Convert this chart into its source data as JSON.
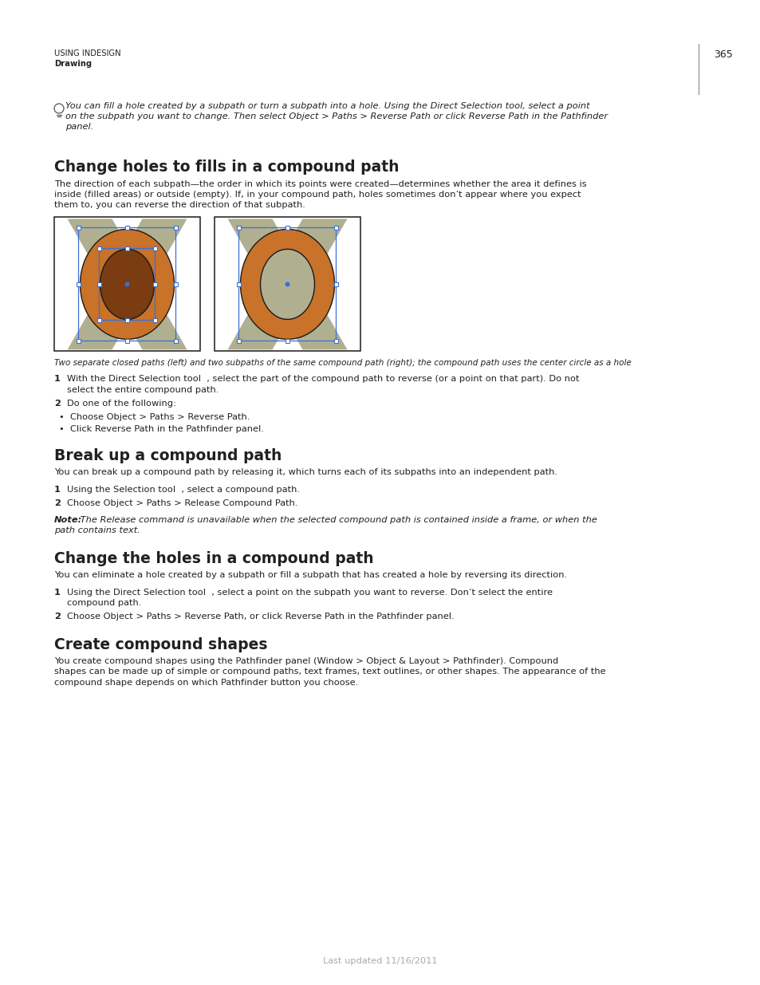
{
  "page_number": "365",
  "header_left_line1": "USING INDESIGN",
  "header_left_line2": "Drawing",
  "tip_text_line1": "You can fill a hole created by a subpath or turn a subpath into a hole. Using the Direct Selection tool, select a point",
  "tip_text_line2": "on the subpath you want to change. Then select Object > Paths > Reverse Path or click Reverse Path in the Pathfinder",
  "tip_text_line3": "panel.",
  "section1_title": "Change holes to fills in a compound path",
  "section1_body_line1": "The direction of each subpath—the order in which its points were created—determines whether the area it defines is",
  "section1_body_line2": "inside (filled areas) or outside (empty). If, in your compound path, holes sometimes don’t appear where you expect",
  "section1_body_line3": "them to, you can reverse the direction of that subpath.",
  "figure_caption": "Two separate closed paths (left) and two subpaths of the same compound path (right); the compound path uses the center circle as a hole",
  "step1_s1_num": "1",
  "step1_s1_line1": "With the Direct Selection tool  , select the part of the compound path to reverse (or a point on that part). Do not",
  "step1_s1_line2": "select the entire compound path.",
  "step2_s1_num": "2",
  "step2_s1_text": "Do one of the following:",
  "bullet1": "Choose Object > Paths > Reverse Path.",
  "bullet2": "Click Reverse Path in the Pathfinder panel.",
  "section2_title": "Break up a compound path",
  "section2_body": "You can break up a compound path by releasing it, which turns each of its subpaths into an independent path.",
  "step1_s2_num": "1",
  "step1_s2_text": "Using the Selection tool  , select a compound path.",
  "step2_s2_num": "2",
  "step2_s2_text": "Choose Object > Paths > Release Compound Path.",
  "note_bold": "Note:",
  "note_italic_line1": " The Release command is unavailable when the selected compound path is contained inside a frame, or when the",
  "note_italic_line2": "path contains text.",
  "section3_title": "Change the holes in a compound path",
  "section3_body": "You can eliminate a hole created by a subpath or fill a subpath that has created a hole by reversing its direction.",
  "step1_s3_num": "1",
  "step1_s3_line1": "Using the Direct Selection tool  , select a point on the subpath you want to reverse. Don’t select the entire",
  "step1_s3_line2": "compound path.",
  "step2_s3_num": "2",
  "step2_s3_text": "Choose Object > Paths > Reverse Path, or click Reverse Path in the Pathfinder panel.",
  "section4_title": "Create compound shapes",
  "section4_body_line1": "You create compound shapes using the Pathfinder panel (Window > Object & Layout > Pathfinder). Compound",
  "section4_body_line2": "shapes can be made up of simple or compound paths, text frames, text outlines, or other shapes. The appearance of the",
  "section4_body_line3": "compound shape depends on which Pathfinder button you choose.",
  "footer_text": "Last updated 11/16/2011",
  "background_color": "#ffffff",
  "text_color": "#231f20",
  "orange_fill": "#c8722a",
  "orange_dark": "#7a3c10",
  "olive_fill": "#b0b090",
  "selection_color": "#3a6fd8",
  "handle_fill": "#ffffff"
}
